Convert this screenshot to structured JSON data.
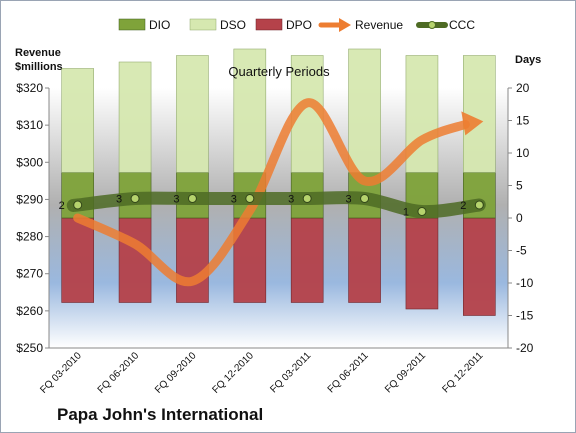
{
  "company": "Papa John's International",
  "chart_data": {
    "type": "bar",
    "stacked": true,
    "title": "Quarterly Periods",
    "left_axis": {
      "title_lines": [
        "Revenue",
        "$millions"
      ],
      "min": 250,
      "max": 320,
      "step": 10,
      "prefix": "$"
    },
    "right_axis": {
      "title": "Days",
      "min": -20,
      "max": 20,
      "step": 5
    },
    "categories": [
      "FQ 03-2010",
      "FQ 06-2010",
      "FQ 09-2010",
      "FQ 12-2010",
      "FQ 03-2011",
      "FQ 06-2011",
      "FQ 09-2011",
      "FQ 12-2011"
    ],
    "series": [
      {
        "name": "DIO",
        "axis": "right",
        "kind": "bar-up",
        "values": [
          7,
          7,
          7,
          7,
          7,
          7,
          7,
          7
        ],
        "color": "#7fa33a"
      },
      {
        "name": "DSO",
        "axis": "right",
        "kind": "bar-up",
        "values": [
          16,
          17,
          18,
          19,
          18,
          19,
          18,
          18
        ],
        "color": "#d6e8b0"
      },
      {
        "name": "DPO",
        "axis": "right",
        "kind": "bar-down",
        "values": [
          -13,
          -13,
          -13,
          -13,
          -13,
          -13,
          -14,
          -15
        ],
        "color": "#b5424a"
      },
      {
        "name": "Revenue",
        "axis": "left",
        "kind": "line",
        "values": [
          285,
          278,
          268,
          287,
          316,
          295,
          306,
          311
        ],
        "color": "#ed7d31"
      },
      {
        "name": "CCC",
        "axis": "right",
        "kind": "line",
        "values": [
          2,
          3,
          3,
          3,
          3,
          3,
          1,
          2
        ],
        "labels": [
          "2",
          "3",
          "3",
          "3",
          "3",
          "3",
          "1",
          "2"
        ],
        "color": "#4e6b24"
      }
    ],
    "legend_position": "top",
    "grid": false,
    "plot_background": "gradient-gray-to-blue"
  }
}
